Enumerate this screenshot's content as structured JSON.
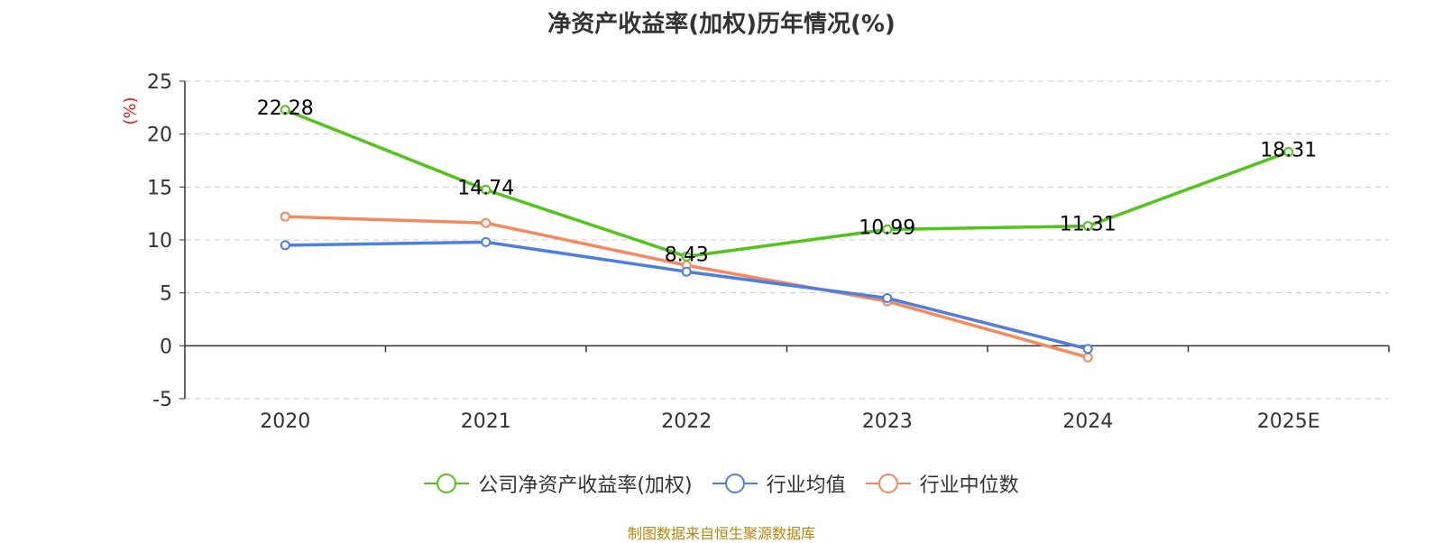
{
  "chart_data": {
    "type": "line",
    "title": "净资产收益率(加权)历年情况(%)",
    "ylabel": "(%)",
    "categories": [
      "2020",
      "2021",
      "2022",
      "2023",
      "2024",
      "2025E"
    ],
    "ylim": [
      -5,
      25
    ],
    "yticks": [
      -5,
      0,
      5,
      10,
      15,
      20,
      25
    ],
    "grid": true,
    "legend_position": "bottom",
    "series": [
      {
        "name": "公司净资产收益率(加权)",
        "color": "#52c41a",
        "values": [
          22.28,
          14.74,
          8.43,
          10.99,
          11.31,
          18.31
        ],
        "labels": [
          "22.28",
          "14.74",
          "8.43",
          "10.99",
          "11.31",
          "18.31"
        ]
      },
      {
        "name": "行业均值",
        "color": "#4e7fe0",
        "values": [
          9.5,
          9.8,
          7.0,
          4.5,
          -0.3,
          null
        ]
      },
      {
        "name": "行业中位数",
        "color": "#f5885c",
        "values": [
          12.2,
          11.6,
          7.6,
          4.2,
          -1.1,
          null
        ]
      }
    ]
  },
  "source_note": "制图数据来自恒生聚源数据库"
}
